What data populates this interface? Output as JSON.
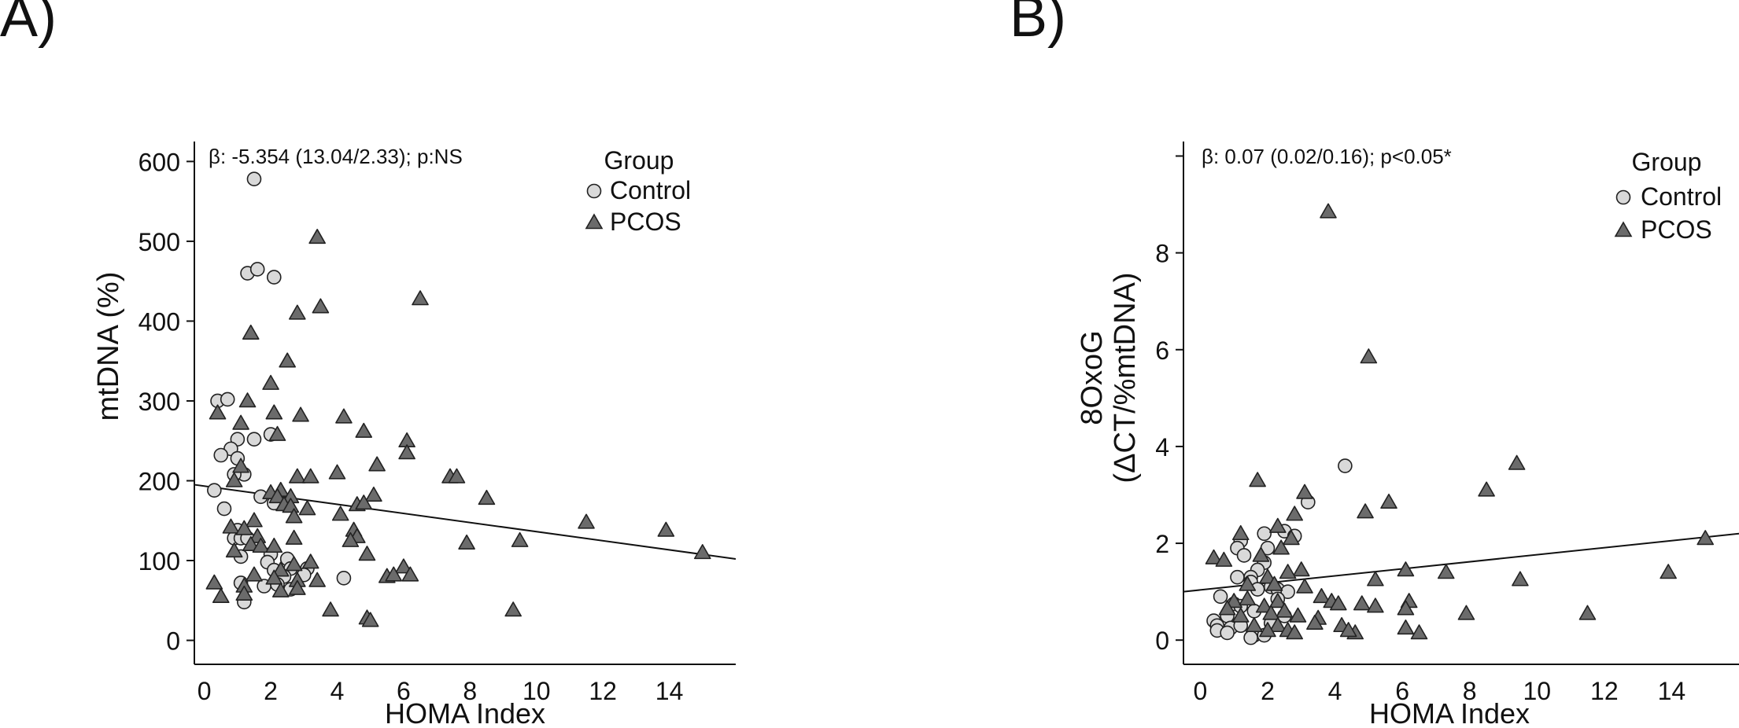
{
  "panel_labels": [
    "A)",
    "B)"
  ],
  "chart_data": [
    {
      "type": "scatter",
      "panel": "A)",
      "annotation": "β: -5.354 (13.04/2.33); p:NS",
      "xlabel": "HOMA Index",
      "ylabel": "mtDNA (%)",
      "xlim": [
        -0.3,
        16
      ],
      "ylim": [
        -30,
        625
      ],
      "xticks": [
        0,
        2,
        4,
        6,
        8,
        10,
        12,
        14
      ],
      "yticks": [
        0,
        100,
        200,
        300,
        400,
        500,
        600
      ],
      "legend": {
        "title": "Group",
        "entries": [
          "Control",
          "PCOS"
        ],
        "position": "top-right"
      },
      "fit_line": {
        "x": [
          -0.3,
          16
        ],
        "y": [
          195,
          102
        ]
      },
      "series": [
        {
          "name": "Control",
          "marker": "circle",
          "color": "#d9d9d9",
          "points": [
            [
              1.5,
              578
            ],
            [
              1.3,
              460
            ],
            [
              1.6,
              465
            ],
            [
              2.1,
              455
            ],
            [
              0.4,
              300
            ],
            [
              0.7,
              302
            ],
            [
              1.0,
              252
            ],
            [
              1.5,
              252
            ],
            [
              0.8,
              240
            ],
            [
              2.0,
              258
            ],
            [
              0.5,
              232
            ],
            [
              1.0,
              228
            ],
            [
              1.2,
              208
            ],
            [
              0.9,
              208
            ],
            [
              0.3,
              188
            ],
            [
              1.7,
              180
            ],
            [
              2.1,
              172
            ],
            [
              0.6,
              165
            ],
            [
              1.0,
              138
            ],
            [
              0.9,
              128
            ],
            [
              1.1,
              128
            ],
            [
              1.3,
              128
            ],
            [
              1.1,
              105
            ],
            [
              2.0,
              108
            ],
            [
              1.9,
              98
            ],
            [
              2.5,
              102
            ],
            [
              2.1,
              88
            ],
            [
              2.6,
              90
            ],
            [
              3.1,
              90
            ],
            [
              2.4,
              80
            ],
            [
              3.0,
              82
            ],
            [
              1.1,
              72
            ],
            [
              1.8,
              68
            ],
            [
              2.2,
              70
            ],
            [
              2.6,
              64
            ],
            [
              1.2,
              48
            ],
            [
              4.2,
              78
            ]
          ]
        },
        {
          "name": "PCOS",
          "marker": "triangle",
          "color": "#6b6b6b",
          "points": [
            [
              3.4,
              505
            ],
            [
              3.5,
              418
            ],
            [
              2.8,
              410
            ],
            [
              6.5,
              428
            ],
            [
              1.4,
              385
            ],
            [
              2.5,
              350
            ],
            [
              2.0,
              322
            ],
            [
              0.4,
              285
            ],
            [
              1.3,
              300
            ],
            [
              1.1,
              272
            ],
            [
              2.9,
              282
            ],
            [
              4.2,
              280
            ],
            [
              2.1,
              285
            ],
            [
              4.8,
              262
            ],
            [
              2.2,
              258
            ],
            [
              6.1,
              250
            ],
            [
              6.1,
              235
            ],
            [
              5.2,
              220
            ],
            [
              1.1,
              218
            ],
            [
              4.0,
              210
            ],
            [
              2.8,
              205
            ],
            [
              3.2,
              205
            ],
            [
              0.9,
              200
            ],
            [
              7.4,
              205
            ],
            [
              7.6,
              205
            ],
            [
              2.3,
              188
            ],
            [
              2.0,
              185
            ],
            [
              2.2,
              180
            ],
            [
              2.6,
              180
            ],
            [
              5.1,
              182
            ],
            [
              8.5,
              178
            ],
            [
              2.4,
              170
            ],
            [
              4.6,
              170
            ],
            [
              4.8,
              172
            ],
            [
              2.6,
              168
            ],
            [
              3.1,
              165
            ],
            [
              4.1,
              158
            ],
            [
              2.7,
              155
            ],
            [
              1.5,
              150
            ],
            [
              0.8,
              142
            ],
            [
              1.2,
              140
            ],
            [
              1.6,
              130
            ],
            [
              2.7,
              128
            ],
            [
              4.5,
              138
            ],
            [
              4.6,
              130
            ],
            [
              4.4,
              125
            ],
            [
              1.4,
              120
            ],
            [
              1.7,
              118
            ],
            [
              0.9,
              112
            ],
            [
              11.5,
              148
            ],
            [
              13.9,
              138
            ],
            [
              7.9,
              122
            ],
            [
              9.5,
              125
            ],
            [
              2.1,
              118
            ],
            [
              4.9,
              108
            ],
            [
              3.2,
              98
            ],
            [
              2.7,
              95
            ],
            [
              2.3,
              88
            ],
            [
              1.5,
              82
            ],
            [
              2.1,
              78
            ],
            [
              3.4,
              75
            ],
            [
              6.0,
              92
            ],
            [
              6.2,
              82
            ],
            [
              5.5,
              80
            ],
            [
              5.7,
              82
            ],
            [
              2.8,
              75
            ],
            [
              0.3,
              72
            ],
            [
              1.2,
              68
            ],
            [
              2.3,
              62
            ],
            [
              2.8,
              65
            ],
            [
              0.5,
              55
            ],
            [
              1.2,
              58
            ],
            [
              3.8,
              38
            ],
            [
              4.9,
              28
            ],
            [
              5.0,
              25
            ],
            [
              9.3,
              38
            ],
            [
              15.0,
              110
            ]
          ]
        }
      ]
    },
    {
      "type": "scatter",
      "panel": "B)",
      "annotation": "β: 0.07 (0.02/0.16); p<0.05*",
      "xlabel": "HOMA Index",
      "ylabel_line1": "8OxoG",
      "ylabel_line2": "(ΔCT/%mtDNA)",
      "xlim": [
        -0.5,
        16
      ],
      "ylim": [
        -0.5,
        10.3
      ],
      "xticks": [
        0,
        2,
        4,
        6,
        8,
        10,
        12,
        14
      ],
      "yticks": [
        0,
        2,
        4,
        6,
        8
      ],
      "ytick_labels": [
        "0",
        "2",
        "4",
        "6",
        "8",
        "–"
      ],
      "yticks_all": [
        0,
        2,
        4,
        6,
        8,
        10
      ],
      "legend": {
        "title": "Group",
        "entries": [
          "Control",
          "PCOS"
        ],
        "position": "top-right"
      },
      "fit_line": {
        "x": [
          -0.5,
          16
        ],
        "y": [
          1.0,
          2.2
        ]
      },
      "series": [
        {
          "name": "Control",
          "marker": "circle",
          "color": "#d9d9d9",
          "points": [
            [
              4.3,
              3.6
            ],
            [
              3.2,
              2.85
            ],
            [
              2.5,
              2.25
            ],
            [
              2.8,
              2.15
            ],
            [
              1.2,
              2.05
            ],
            [
              1.9,
              2.2
            ],
            [
              1.1,
              1.9
            ],
            [
              2.0,
              1.9
            ],
            [
              1.3,
              1.75
            ],
            [
              1.9,
              1.6
            ],
            [
              1.7,
              1.45
            ],
            [
              1.5,
              1.3
            ],
            [
              1.1,
              1.3
            ],
            [
              1.5,
              1.2
            ],
            [
              1.7,
              1.05
            ],
            [
              2.1,
              1.1
            ],
            [
              2.3,
              1.05
            ],
            [
              2.6,
              1.0
            ],
            [
              0.6,
              0.9
            ],
            [
              2.3,
              0.85
            ],
            [
              1.0,
              0.75
            ],
            [
              1.2,
              0.7
            ],
            [
              1.6,
              0.6
            ],
            [
              0.8,
              0.5
            ],
            [
              0.4,
              0.4
            ],
            [
              0.5,
              0.3
            ],
            [
              0.9,
              0.25
            ],
            [
              1.2,
              0.3
            ],
            [
              0.5,
              0.2
            ],
            [
              0.8,
              0.15
            ],
            [
              1.6,
              0.1
            ],
            [
              1.9,
              0.1
            ],
            [
              1.5,
              0.05
            ],
            [
              2.1,
              0.35
            ],
            [
              2.5,
              0.5
            ]
          ]
        },
        {
          "name": "PCOS",
          "marker": "triangle",
          "color": "#6b6b6b",
          "points": [
            [
              3.8,
              8.85
            ],
            [
              5.0,
              5.85
            ],
            [
              9.4,
              3.65
            ],
            [
              1.7,
              3.3
            ],
            [
              3.1,
              3.05
            ],
            [
              8.5,
              3.1
            ],
            [
              5.6,
              2.85
            ],
            [
              4.9,
              2.65
            ],
            [
              2.8,
              2.6
            ],
            [
              2.3,
              2.35
            ],
            [
              1.2,
              2.2
            ],
            [
              2.7,
              2.1
            ],
            [
              15.0,
              2.1
            ],
            [
              2.4,
              1.9
            ],
            [
              0.4,
              1.7
            ],
            [
              0.7,
              1.65
            ],
            [
              1.8,
              1.75
            ],
            [
              6.1,
              1.45
            ],
            [
              7.3,
              1.4
            ],
            [
              13.9,
              1.4
            ],
            [
              3.0,
              1.45
            ],
            [
              2.6,
              1.4
            ],
            [
              2.0,
              1.3
            ],
            [
              5.2,
              1.25
            ],
            [
              9.5,
              1.25
            ],
            [
              1.4,
              1.15
            ],
            [
              2.2,
              1.15
            ],
            [
              3.1,
              1.1
            ],
            [
              3.6,
              0.9
            ],
            [
              1.0,
              0.8
            ],
            [
              1.4,
              0.85
            ],
            [
              2.3,
              0.8
            ],
            [
              3.9,
              0.8
            ],
            [
              4.8,
              0.75
            ],
            [
              6.2,
              0.8
            ],
            [
              4.1,
              0.75
            ],
            [
              0.8,
              0.65
            ],
            [
              1.9,
              0.7
            ],
            [
              2.5,
              0.6
            ],
            [
              5.2,
              0.7
            ],
            [
              6.1,
              0.65
            ],
            [
              7.9,
              0.55
            ],
            [
              11.5,
              0.55
            ],
            [
              2.1,
              0.55
            ],
            [
              1.2,
              0.5
            ],
            [
              2.9,
              0.5
            ],
            [
              3.5,
              0.45
            ],
            [
              3.4,
              0.35
            ],
            [
              2.3,
              0.3
            ],
            [
              1.6,
              0.3
            ],
            [
              4.2,
              0.3
            ],
            [
              2.6,
              0.2
            ],
            [
              6.1,
              0.25
            ],
            [
              6.5,
              0.15
            ],
            [
              4.6,
              0.15
            ],
            [
              4.4,
              0.2
            ],
            [
              2.8,
              0.15
            ],
            [
              2.0,
              0.2
            ]
          ]
        }
      ]
    }
  ]
}
